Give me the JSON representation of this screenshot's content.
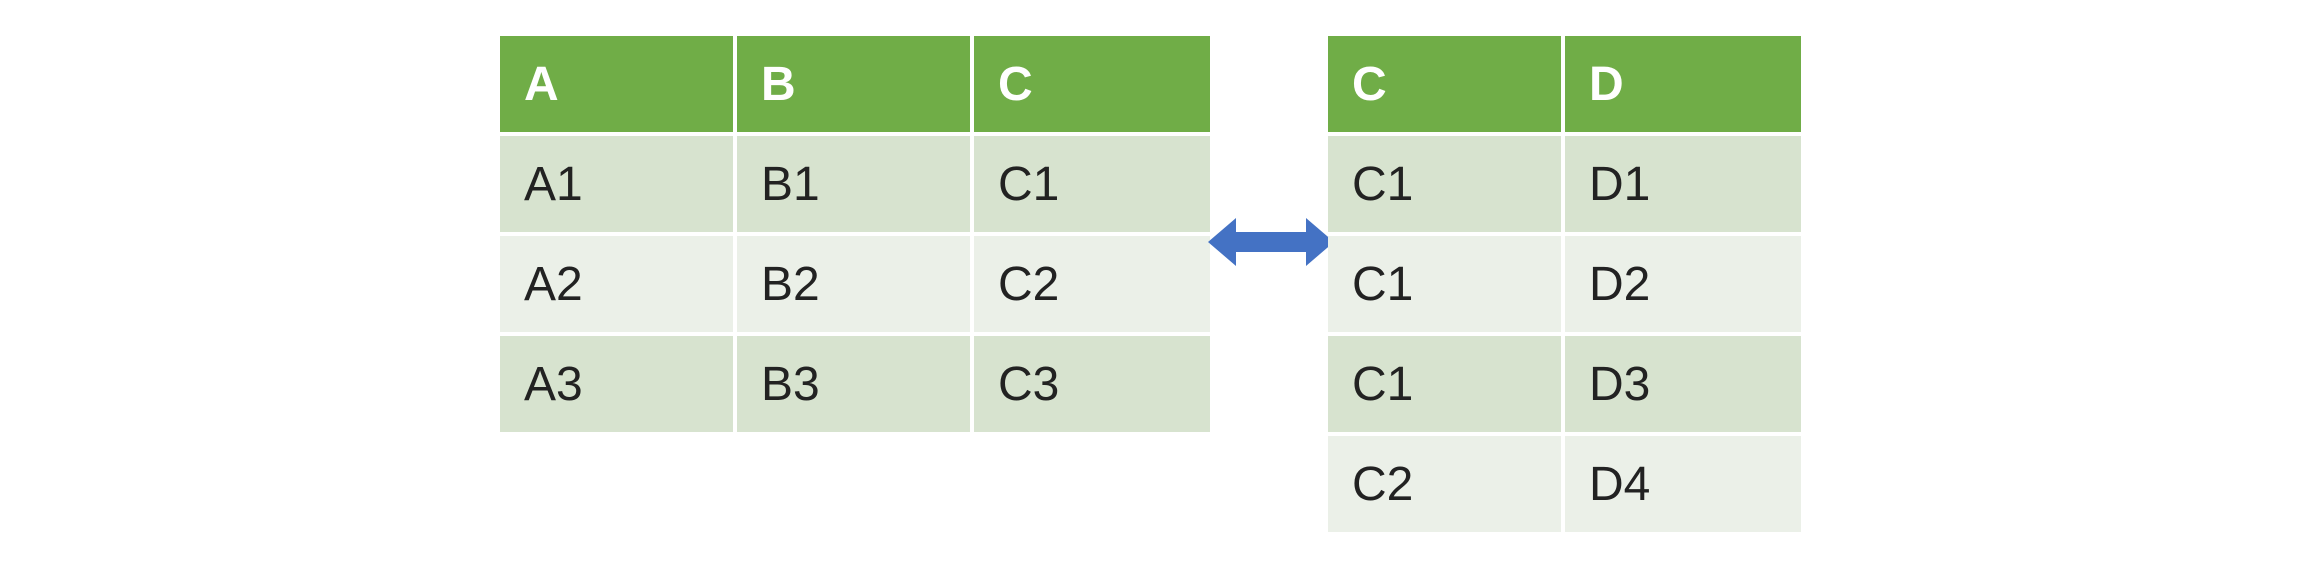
{
  "colors": {
    "header": "#70ad47",
    "row_dark": "#d7e3cf",
    "row_light": "#ebf0e8",
    "arrow": "#4472c4"
  },
  "left_table": {
    "columns": [
      "A",
      "B",
      "C"
    ],
    "rows": [
      [
        "A1",
        "B1",
        "C1"
      ],
      [
        "A2",
        "B2",
        "C2"
      ],
      [
        "A3",
        "B3",
        "C3"
      ]
    ]
  },
  "right_table": {
    "columns": [
      "C",
      "D"
    ],
    "rows": [
      [
        "C1",
        "D1"
      ],
      [
        "C1",
        "D2"
      ],
      [
        "C1",
        "D3"
      ],
      [
        "C2",
        "D4"
      ]
    ]
  },
  "connector": {
    "icon": "double-headed-arrow-icon"
  }
}
